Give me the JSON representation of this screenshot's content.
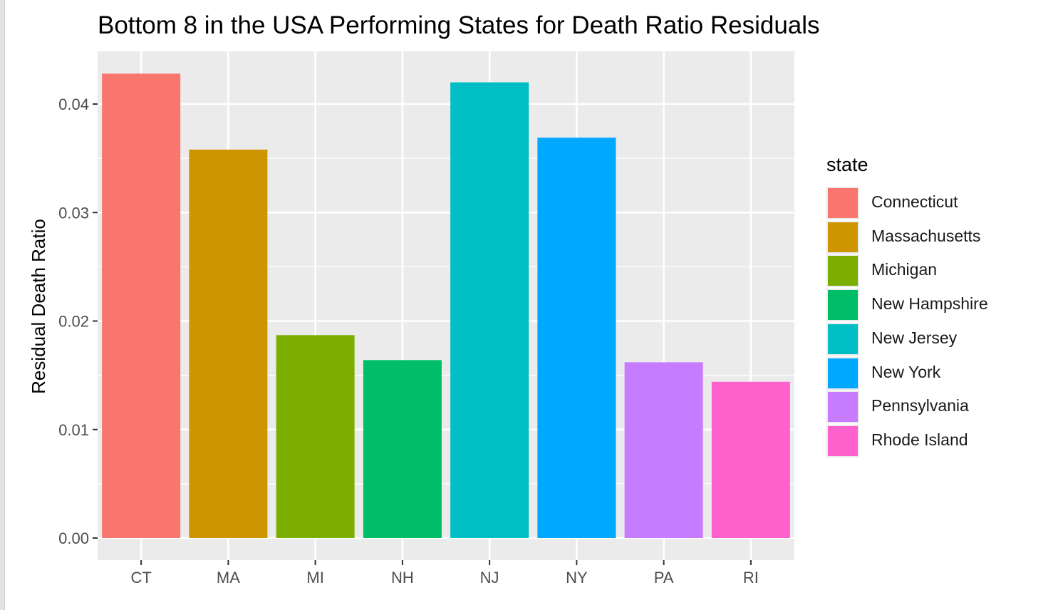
{
  "chart_data": {
    "type": "bar",
    "title": "Bottom 8 in the USA Performing States for Death Ratio Residuals",
    "xlabel": "",
    "ylabel": "Residual Death Ratio",
    "categories": [
      "CT",
      "MA",
      "MI",
      "NH",
      "NJ",
      "NY",
      "PA",
      "RI"
    ],
    "values": [
      0.0428,
      0.0358,
      0.0187,
      0.0164,
      0.042,
      0.0369,
      0.0162,
      0.0144
    ],
    "colors": [
      "#F8766D",
      "#CD9600",
      "#7CAE00",
      "#00BE67",
      "#00BFC4",
      "#00A9FF",
      "#C77CFF",
      "#FF61CC"
    ],
    "ylim": [
      0,
      0.045
    ],
    "yticks": [
      0.0,
      0.01,
      0.02,
      0.03,
      0.04
    ],
    "ytick_labels": [
      "0.00",
      "0.01",
      "0.02",
      "0.03",
      "0.04"
    ],
    "panel_background": "#EBEBEB",
    "grid": true,
    "legend": {
      "title": "state",
      "placement": "right",
      "entries": [
        "Connecticut",
        "Massachusetts",
        "Michigan",
        "New Hampshire",
        "New Jersey",
        "New York",
        "Pennsylvania",
        "Rhode Island"
      ]
    }
  }
}
